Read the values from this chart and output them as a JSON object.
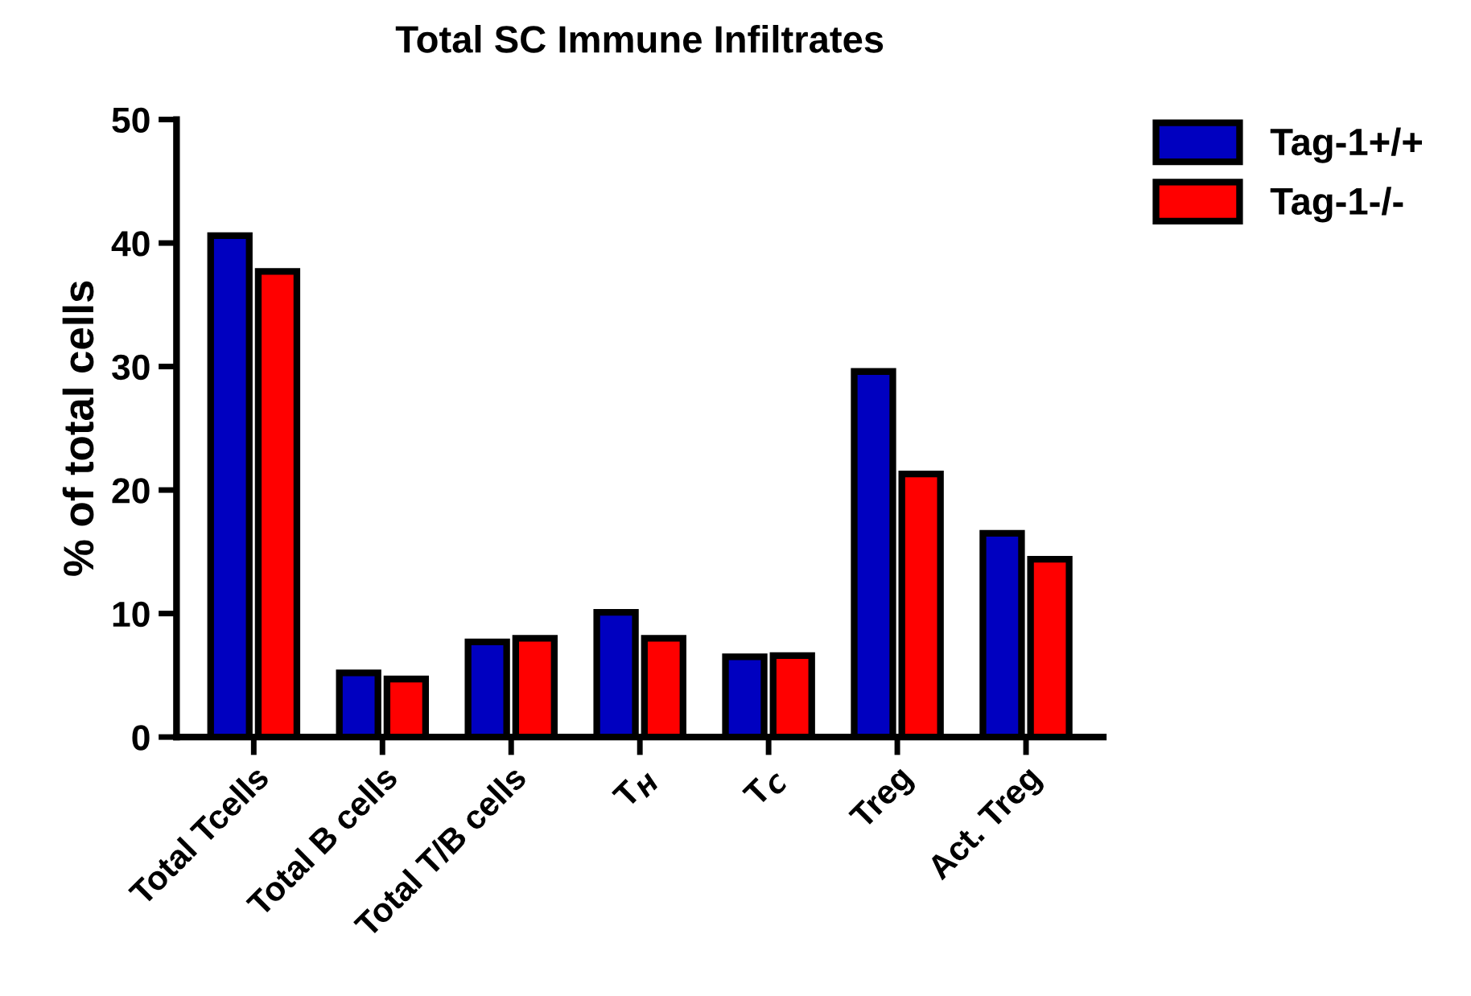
{
  "chart_data": {
    "type": "bar",
    "title": "Total SC Immune Infiltrates",
    "ylabel": "% of total cells",
    "categories": [
      "Total Tcells",
      "Total B cells",
      "Total T/B cells",
      "T$_{H}$",
      "T$_{C}$",
      "Treg",
      "Act. Treg"
    ],
    "series": [
      {
        "name": "Tag-1+/+",
        "color": "#0000c0",
        "values": [
          40.6,
          5.2,
          7.7,
          10.1,
          6.5,
          29.6,
          16.5
        ]
      },
      {
        "name": "Tag-1-/-",
        "color": "#ff0000",
        "values": [
          37.7,
          4.7,
          8.0,
          8.0,
          6.6,
          21.3,
          14.4
        ]
      }
    ],
    "ylim": [
      0,
      50
    ],
    "yticks": [
      0,
      10,
      20,
      30,
      40,
      50
    ],
    "grid": false,
    "legend": "top right"
  }
}
